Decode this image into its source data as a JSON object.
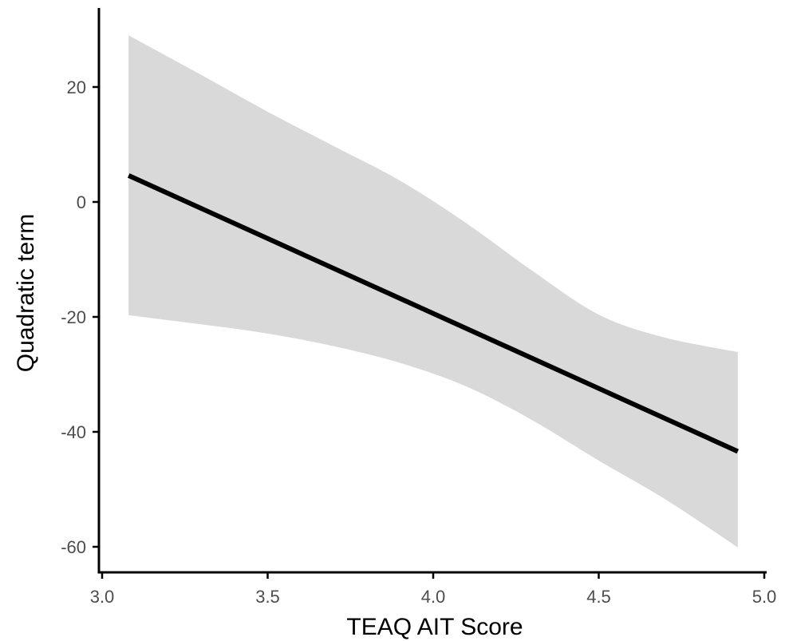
{
  "chart_data": {
    "type": "line",
    "title": "",
    "xlabel": "TEAQ AIT Score",
    "ylabel": "Quadratic term",
    "xlim": [
      3.0,
      5.0
    ],
    "ylim": [
      -60,
      20
    ],
    "x_ticks": [
      3.0,
      3.5,
      4.0,
      4.5,
      5.0
    ],
    "x_tick_labels": [
      "3.0",
      "3.5",
      "4.0",
      "4.5",
      "5.0"
    ],
    "y_ticks": [
      -60,
      -40,
      -20,
      0,
      20
    ],
    "y_tick_labels": [
      "-60",
      "-40",
      "-20",
      "0",
      "20"
    ],
    "grid": false,
    "series": [
      {
        "x": [
          3.08,
          4.92
        ],
        "y": [
          4.6,
          -43.4
        ],
        "color": "#000000"
      }
    ],
    "ribbon": {
      "color": "#d9d9d9",
      "x": [
        3.08,
        3.3,
        3.5,
        3.7,
        3.9,
        4.1,
        4.3,
        4.5,
        4.7,
        4.92
      ],
      "upper": [
        29.0,
        22.1,
        15.7,
        9.7,
        3.7,
        -3.7,
        -12.0,
        -19.6,
        -23.6,
        -26.1
      ],
      "lower": [
        -19.7,
        -21.3,
        -22.9,
        -25.1,
        -28.0,
        -32.1,
        -38.0,
        -45.0,
        -51.7,
        -60.1
      ]
    }
  }
}
